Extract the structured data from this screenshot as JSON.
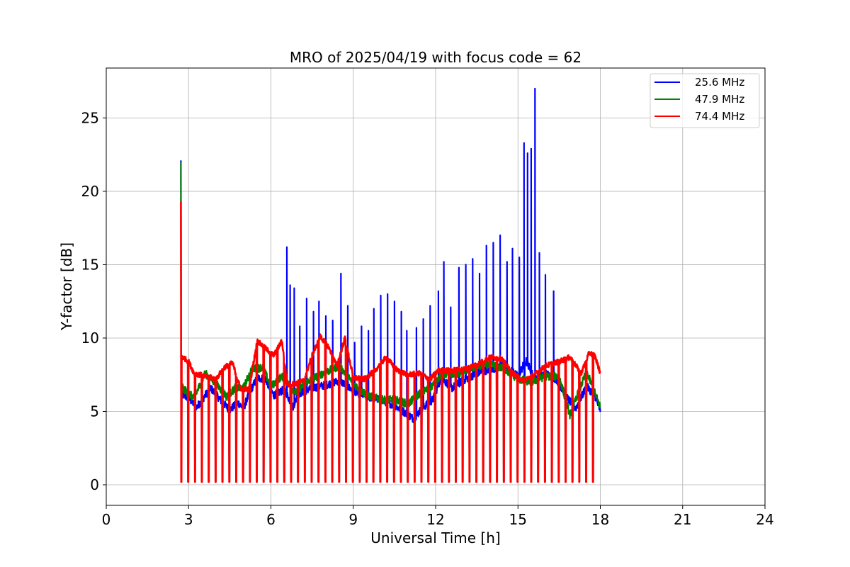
{
  "chart_data": {
    "type": "line",
    "title": "MRO of 2025/04/19 with focus code = 62",
    "xlabel": "Universal Time [h]",
    "ylabel": "Y-factor [dB]",
    "xlim": [
      0,
      24
    ],
    "ylim": [
      -1.4,
      28.4
    ],
    "xticks": [
      0,
      3,
      6,
      9,
      12,
      15,
      18,
      21,
      24
    ],
    "yticks": [
      0,
      5,
      10,
      15,
      20,
      25
    ],
    "grid": true,
    "legend_position": "top-right",
    "calibration": {
      "start_hour": 2.72,
      "end_hour": 17.75,
      "period_hours": 0.25,
      "pulse_width_hours": 0.02,
      "trough_db": 0.2
    },
    "series": [
      {
        "name": "25.6 MHz",
        "color": "#0000ff",
        "cal_peak_db": 22.1,
        "anchors": [
          [
            2.72,
            6.2
          ],
          [
            3.0,
            5.9
          ],
          [
            3.3,
            5.3
          ],
          [
            3.8,
            6.6
          ],
          [
            4.2,
            5.7
          ],
          [
            4.5,
            5.1
          ],
          [
            4.8,
            5.6
          ],
          [
            5.0,
            5.2
          ],
          [
            5.2,
            6.2
          ],
          [
            5.5,
            7.3
          ],
          [
            5.8,
            7.2
          ],
          [
            6.1,
            6.1
          ],
          [
            6.5,
            6.5
          ],
          [
            6.8,
            5.3
          ],
          [
            7.0,
            6.2
          ],
          [
            7.5,
            6.6
          ],
          [
            8.0,
            6.8
          ],
          [
            8.5,
            7.1
          ],
          [
            9.0,
            6.4
          ],
          [
            9.5,
            6.0
          ],
          [
            10.0,
            5.8
          ],
          [
            10.5,
            5.4
          ],
          [
            10.9,
            4.9
          ],
          [
            11.2,
            4.5
          ],
          [
            11.5,
            5.2
          ],
          [
            11.9,
            5.8
          ],
          [
            12.2,
            7.3
          ],
          [
            12.6,
            6.6
          ],
          [
            13.0,
            7.1
          ],
          [
            13.5,
            7.6
          ],
          [
            14.0,
            7.9
          ],
          [
            14.5,
            8.1
          ],
          [
            15.0,
            7.4
          ],
          [
            15.3,
            8.5
          ],
          [
            15.6,
            7.2
          ],
          [
            16.0,
            7.6
          ],
          [
            16.4,
            7.2
          ],
          [
            16.8,
            5.9
          ],
          [
            17.1,
            5.2
          ],
          [
            17.5,
            6.7
          ],
          [
            17.8,
            6.1
          ],
          [
            18.0,
            5.0
          ]
        ],
        "spikes": [
          [
            6.58,
            16.2
          ],
          [
            6.7,
            13.6
          ],
          [
            6.85,
            13.4
          ],
          [
            7.05,
            10.8
          ],
          [
            7.3,
            12.7
          ],
          [
            7.55,
            11.8
          ],
          [
            7.75,
            12.5
          ],
          [
            8.0,
            11.5
          ],
          [
            8.25,
            11.2
          ],
          [
            8.55,
            14.4
          ],
          [
            8.8,
            12.2
          ],
          [
            9.05,
            9.7
          ],
          [
            9.3,
            10.8
          ],
          [
            9.55,
            10.5
          ],
          [
            9.75,
            12.0
          ],
          [
            10.0,
            12.9
          ],
          [
            10.25,
            13.0
          ],
          [
            10.5,
            12.5
          ],
          [
            10.75,
            11.8
          ],
          [
            10.95,
            10.5
          ],
          [
            11.3,
            10.7
          ],
          [
            11.55,
            11.3
          ],
          [
            11.8,
            12.2
          ],
          [
            12.1,
            13.2
          ],
          [
            12.3,
            15.2
          ],
          [
            12.55,
            12.1
          ],
          [
            12.85,
            14.8
          ],
          [
            13.1,
            15.0
          ],
          [
            13.35,
            15.4
          ],
          [
            13.6,
            14.4
          ],
          [
            13.85,
            16.3
          ],
          [
            14.1,
            16.5
          ],
          [
            14.35,
            17.0
          ],
          [
            14.6,
            15.2
          ],
          [
            14.8,
            16.1
          ],
          [
            15.05,
            15.5
          ],
          [
            15.22,
            23.3
          ],
          [
            15.35,
            22.6
          ],
          [
            15.48,
            22.9
          ],
          [
            15.62,
            27.0
          ],
          [
            15.78,
            15.8
          ],
          [
            16.0,
            14.3
          ],
          [
            16.3,
            13.2
          ],
          [
            17.5,
            8.3
          ]
        ]
      },
      {
        "name": "47.9 MHz",
        "color": "#008000",
        "cal_peak_db": 22.0,
        "anchors": [
          [
            2.72,
            6.7
          ],
          [
            3.2,
            5.9
          ],
          [
            3.6,
            7.6
          ],
          [
            4.0,
            6.9
          ],
          [
            4.4,
            6.0
          ],
          [
            4.7,
            6.6
          ],
          [
            5.0,
            6.6
          ],
          [
            5.3,
            7.9
          ],
          [
            5.7,
            8.0
          ],
          [
            6.0,
            6.7
          ],
          [
            6.4,
            7.4
          ],
          [
            6.9,
            6.3
          ],
          [
            7.3,
            7.0
          ],
          [
            7.9,
            7.6
          ],
          [
            8.5,
            8.1
          ],
          [
            9.0,
            6.9
          ],
          [
            9.5,
            6.1
          ],
          [
            10.0,
            5.8
          ],
          [
            10.5,
            5.8
          ],
          [
            11.0,
            5.5
          ],
          [
            11.4,
            6.2
          ],
          [
            11.8,
            6.6
          ],
          [
            12.2,
            7.5
          ],
          [
            12.8,
            7.6
          ],
          [
            13.4,
            8.0
          ],
          [
            14.0,
            8.2
          ],
          [
            14.5,
            7.9
          ],
          [
            15.0,
            7.2
          ],
          [
            15.5,
            7.0
          ],
          [
            16.0,
            7.4
          ],
          [
            16.5,
            7.4
          ],
          [
            16.9,
            4.7
          ],
          [
            17.2,
            6.3
          ],
          [
            17.5,
            7.7
          ],
          [
            18.0,
            5.3
          ]
        ],
        "spikes": []
      },
      {
        "name": "74.4 MHz",
        "color": "#ff0000",
        "cal_peak_db": 19.3,
        "anchors": [
          [
            2.72,
            8.8
          ],
          [
            3.0,
            8.4
          ],
          [
            3.2,
            7.6
          ],
          [
            3.6,
            7.4
          ],
          [
            4.0,
            7.2
          ],
          [
            4.3,
            8.0
          ],
          [
            4.6,
            8.3
          ],
          [
            4.9,
            6.5
          ],
          [
            5.2,
            6.5
          ],
          [
            5.5,
            9.8
          ],
          [
            5.8,
            9.3
          ],
          [
            6.1,
            8.8
          ],
          [
            6.4,
            9.8
          ],
          [
            6.6,
            6.8
          ],
          [
            6.9,
            6.9
          ],
          [
            7.2,
            7.1
          ],
          [
            7.5,
            8.8
          ],
          [
            7.8,
            10.1
          ],
          [
            8.1,
            9.4
          ],
          [
            8.4,
            8.1
          ],
          [
            8.7,
            10.0
          ],
          [
            9.0,
            7.3
          ],
          [
            9.4,
            7.2
          ],
          [
            9.8,
            7.8
          ],
          [
            10.2,
            8.7
          ],
          [
            10.6,
            7.8
          ],
          [
            11.0,
            7.5
          ],
          [
            11.4,
            7.6
          ],
          [
            11.8,
            7.2
          ],
          [
            12.1,
            7.8
          ],
          [
            12.6,
            7.8
          ],
          [
            13.1,
            7.9
          ],
          [
            13.6,
            8.3
          ],
          [
            14.0,
            8.7
          ],
          [
            14.4,
            8.6
          ],
          [
            14.8,
            7.6
          ],
          [
            15.2,
            7.1
          ],
          [
            15.6,
            7.5
          ],
          [
            16.0,
            8.1
          ],
          [
            16.5,
            8.4
          ],
          [
            16.9,
            8.7
          ],
          [
            17.3,
            7.6
          ],
          [
            17.6,
            9.0
          ],
          [
            17.8,
            8.8
          ],
          [
            18.0,
            7.6
          ]
        ],
        "spikes": []
      }
    ]
  }
}
